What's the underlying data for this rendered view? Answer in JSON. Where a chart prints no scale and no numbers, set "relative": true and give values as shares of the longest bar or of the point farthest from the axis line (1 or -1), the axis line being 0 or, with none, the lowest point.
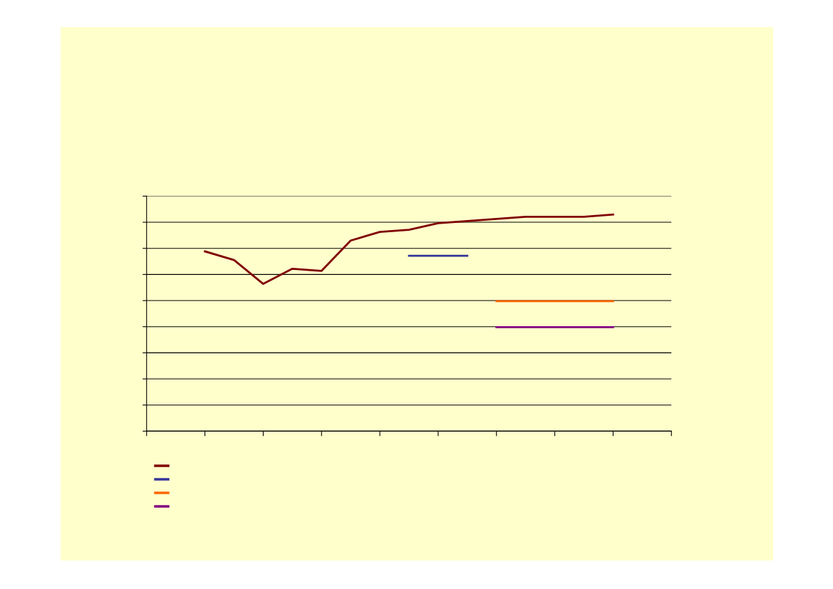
{
  "chart_data": {
    "type": "line",
    "relative": true,
    "grid": "y",
    "marker": "none",
    "line_style": "solid",
    "categories": [
      null,
      null,
      null,
      null,
      null,
      null,
      null,
      null,
      null,
      null,
      null,
      null,
      null,
      null,
      null,
      null,
      null,
      null,
      null
    ],
    "series": [
      {
        "color": "#800000",
        "values": [
          null,
          null,
          0.83,
          0.79,
          0.68,
          0.75,
          0.74,
          0.88,
          0.92,
          0.93,
          0.96,
          0.97,
          0.98,
          0.99,
          0.99,
          0.99,
          1.0,
          null,
          null
        ]
      },
      {
        "color": "#333399",
        "values": [
          null,
          null,
          null,
          null,
          null,
          null,
          null,
          null,
          null,
          0.81,
          0.81,
          0.81,
          null,
          null,
          null,
          null,
          null,
          null,
          null
        ]
      },
      {
        "color": "#ff6600",
        "values": [
          null,
          null,
          null,
          null,
          null,
          null,
          null,
          null,
          null,
          null,
          null,
          null,
          0.6,
          0.6,
          0.6,
          0.6,
          0.6,
          null,
          null
        ]
      },
      {
        "color": "#800080",
        "values": [
          null,
          null,
          null,
          null,
          null,
          null,
          null,
          null,
          null,
          null,
          null,
          null,
          0.48,
          0.48,
          0.48,
          0.48,
          0.48,
          null,
          null
        ]
      }
    ]
  }
}
